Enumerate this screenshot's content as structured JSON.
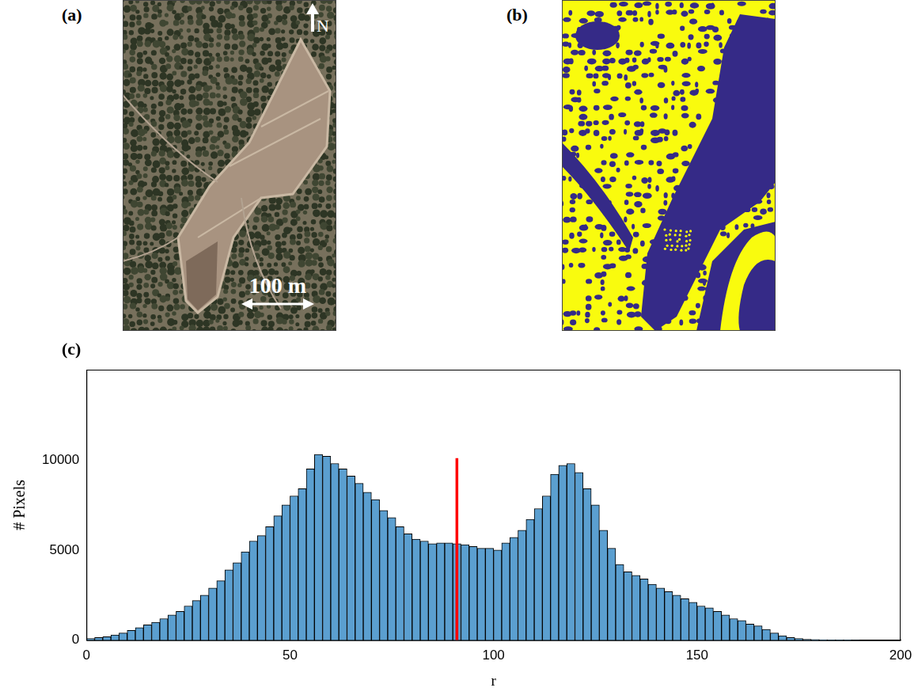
{
  "panel_a": {
    "label": "(a)",
    "north_label": "N",
    "scale_bar_label": "100 m"
  },
  "panel_b": {
    "label": "(b)"
  },
  "chart_data": {
    "type": "histogram",
    "title": "(c)",
    "x_label": "r",
    "y_label": "# Pixels",
    "bins": [
      0,
      2,
      4,
      6,
      8,
      10,
      12,
      14,
      16,
      18,
      20,
      22,
      24,
      26,
      28,
      30,
      32,
      34,
      36,
      38,
      40,
      42,
      44,
      46,
      48,
      50,
      52,
      54,
      56,
      58,
      60,
      62,
      64,
      66,
      68,
      70,
      72,
      74,
      76,
      78,
      80,
      82,
      84,
      86,
      88,
      90,
      92,
      94,
      96,
      98,
      100,
      102,
      104,
      106,
      108,
      110,
      112,
      114,
      116,
      118,
      120,
      122,
      124,
      126,
      128,
      130,
      132,
      134,
      136,
      138,
      140,
      142,
      144,
      146,
      148,
      150,
      152,
      154,
      156,
      158,
      160,
      162,
      164,
      166,
      168,
      170,
      172,
      174,
      176,
      178,
      180,
      182,
      184,
      186,
      188,
      190,
      192,
      194,
      196,
      198,
      200
    ],
    "values": [
      100,
      150,
      200,
      300,
      400,
      550,
      700,
      850,
      1000,
      1200,
      1400,
      1600,
      1900,
      2200,
      2500,
      2900,
      3300,
      3900,
      4300,
      4900,
      5500,
      5800,
      6300,
      6900,
      7500,
      8000,
      8400,
      9500,
      10300,
      10200,
      9800,
      9500,
      9100,
      8700,
      8200,
      7800,
      7200,
      6800,
      6300,
      5900,
      5600,
      5500,
      5350,
      5400,
      5400,
      5350,
      5300,
      5200,
      5100,
      5100,
      5000,
      5400,
      5700,
      6100,
      6700,
      7300,
      8000,
      9200,
      9700,
      9800,
      9300,
      8400,
      7500,
      6100,
      5100,
      4200,
      3800,
      3600,
      3400,
      3100,
      2900,
      2700,
      2500,
      2300,
      2100,
      1900,
      1800,
      1600,
      1400,
      1200,
      1100,
      900,
      800,
      600,
      400,
      250,
      150,
      100,
      50,
      40,
      30,
      20,
      15,
      10,
      5,
      0,
      0,
      0,
      0,
      0
    ],
    "color": "#5b9fd0",
    "xlim": [
      0,
      200
    ],
    "xticks": [
      0,
      50,
      100,
      150,
      200
    ],
    "ylim": [
      0,
      15000
    ],
    "yticks": [
      0,
      5000,
      10000
    ],
    "grid": false,
    "threshold": {
      "x": 91,
      "top": 10100,
      "color": "#ff0000"
    }
  }
}
